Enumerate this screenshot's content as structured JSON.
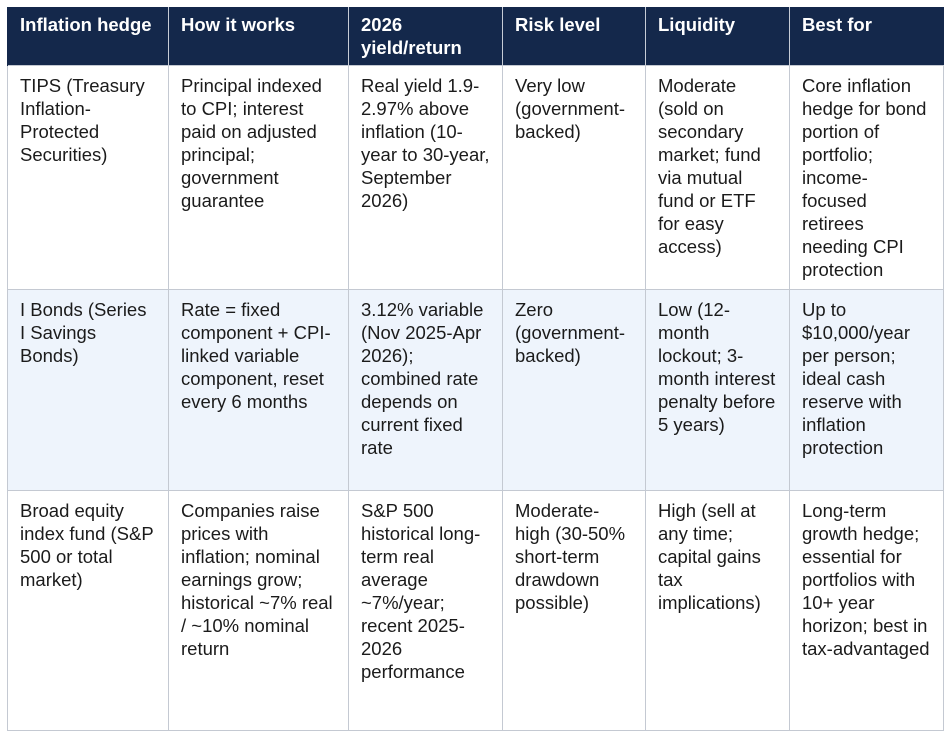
{
  "headers": [
    "Inflation hedge",
    "How it works",
    "2026 yield/return",
    "Risk level",
    "Liquidity",
    "Best for"
  ],
  "rows": [
    {
      "hedge": "TIPS (Treasury Inflation-Protected Securities)",
      "how": "Principal indexed to CPI; interest paid on adjusted principal; government guarantee",
      "yield": "Real yield 1.9-2.97% above inflation (10-year to 30-year, September 2026)",
      "risk": "Very low (government-backed)",
      "liquidity": "Moderate (sold on secondary market; fund via mutual fund or ETF for easy access)",
      "best": "Core inflation hedge for bond portion of portfolio; income-focused retirees needing CPI protection"
    },
    {
      "hedge": "I Bonds (Series I Savings Bonds)",
      "how": "Rate = fixed component + CPI-linked variable component, reset every 6 months",
      "yield": "3.12% variable (Nov 2025-Apr 2026); combined rate depends on current fixed rate",
      "risk": "Zero (government-backed)",
      "liquidity": "Low (12-month lockout; 3-month interest penalty before 5 years)",
      "best": "Up to $10,000/year per person; ideal cash reserve with inflation protection"
    },
    {
      "hedge": "Broad equity index fund (S&P 500 or total market)",
      "how": "Companies raise prices with inflation; nominal earnings grow; historical ~7% real / ~10% nominal return",
      "yield": "S&P 500 historical long-term real average ~7%/year; recent 2025-2026 performance",
      "risk": "Moderate-high (30-50% short-term drawdown possible)",
      "liquidity": "High (sell at any time; capital gains tax implications)",
      "best": "Long-term growth hedge; essential for portfolios with 10+ year horizon; best in tax-advantaged"
    }
  ]
}
